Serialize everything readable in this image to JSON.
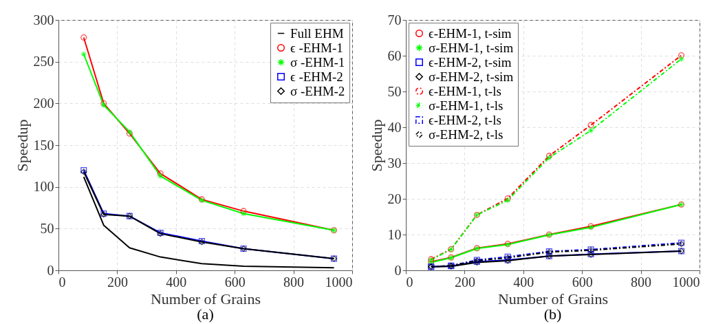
{
  "chart_data": [
    {
      "type": "line",
      "xlabel": "Number of Grains",
      "ylabel": "Speedup",
      "annotations": [
        "(a)"
      ],
      "x": [
        86,
        154,
        242,
        347,
        488,
        630,
        938
      ],
      "xlim": [
        0,
        1000
      ],
      "xticks": [
        0,
        200,
        400,
        600,
        800,
        1000
      ],
      "ylim": [
        0,
        300
      ],
      "yticks": [
        0,
        50,
        100,
        150,
        200,
        250,
        300
      ],
      "grid": true,
      "legend": "top right",
      "series": [
        {
          "name": "Full EHM",
          "color": "#000000",
          "marker": "none",
          "line_style": "solid",
          "values": [
            112,
            54,
            27,
            16,
            8,
            5,
            3
          ]
        },
        {
          "name": "ϵ -EHM-1",
          "color": "#ff0000",
          "marker": "circle",
          "line_style": "solid",
          "values": [
            279,
            200,
            164,
            116,
            85,
            71,
            48
          ]
        },
        {
          "name": "σ -EHM-1",
          "color": "#00ff00",
          "marker": "cross",
          "line_style": "solid",
          "values": [
            259,
            198,
            166,
            113,
            84,
            68,
            48
          ]
        },
        {
          "name": "ϵ -EHM-2",
          "color": "#0000ff",
          "marker": "square",
          "line_style": "solid",
          "values": [
            120,
            68,
            65,
            45,
            35,
            26,
            14
          ]
        },
        {
          "name": "σ -EHM-2",
          "color": "#000000",
          "marker": "diamond",
          "line_style": "solid",
          "values": [
            118,
            67,
            65,
            44,
            34,
            26,
            14
          ]
        }
      ]
    },
    {
      "type": "line",
      "xlabel": "Number of Grains",
      "ylabel": "Speedup",
      "annotations": [
        "(b)"
      ],
      "x": [
        86,
        154,
        242,
        347,
        488,
        630,
        938
      ],
      "xlim": [
        0,
        1000
      ],
      "xticks": [
        0,
        200,
        400,
        600,
        800,
        1000
      ],
      "ylim": [
        0,
        70
      ],
      "yticks": [
        0,
        10,
        20,
        30,
        40,
        50,
        60,
        70
      ],
      "grid": true,
      "legend": "top left",
      "series": [
        {
          "name": "ϵ-EHM-1, t-sim",
          "color": "#ff0000",
          "marker": "circle",
          "line_style": "solid",
          "values": [
            2.4,
            3.6,
            6.2,
            7.4,
            10,
            12.3,
            18.4
          ]
        },
        {
          "name": "σ-EHM-1, t-sim",
          "color": "#00ff00",
          "marker": "cross",
          "line_style": "solid",
          "values": [
            2.2,
            3.5,
            6.1,
            7.2,
            9.9,
            12,
            18.4
          ]
        },
        {
          "name": "ϵ-EHM-2, t-sim",
          "color": "#0000ff",
          "marker": "square",
          "line_style": "solid",
          "values": [
            1,
            1.2,
            2.4,
            2.9,
            4,
            4.5,
            5.4
          ]
        },
        {
          "name": "σ-EHM-2, t-sim",
          "color": "#000000",
          "marker": "diamond",
          "line_style": "solid",
          "values": [
            1,
            1.1,
            2.2,
            2.7,
            4,
            4.4,
            5.4
          ]
        },
        {
          "name": "ϵ-EHM-1, t-ls",
          "color": "#ff0000",
          "marker": "circle",
          "line_style": "dashed",
          "values": [
            3.1,
            5.9,
            15.5,
            20.1,
            32,
            40.6,
            60.1
          ]
        },
        {
          "name": "σ-EHM-1, t-ls",
          "color": "#00ff00",
          "marker": "cross",
          "line_style": "dashed",
          "values": [
            2.9,
            5.9,
            15.5,
            19.6,
            31.5,
            39.1,
            59.1
          ]
        },
        {
          "name": "ϵ-EHM-2, t-ls",
          "color": "#0000ff",
          "marker": "square",
          "line_style": "dashed",
          "values": [
            1,
            1.3,
            2.9,
            3.8,
            5.3,
            5.8,
            7.7
          ]
        },
        {
          "name": "σ-EHM-2, t-ls",
          "color": "#000000",
          "marker": "diamond",
          "line_style": "dashed",
          "values": [
            1,
            1.3,
            2.7,
            3.5,
            5.1,
            5.6,
            7.4
          ]
        }
      ]
    }
  ]
}
